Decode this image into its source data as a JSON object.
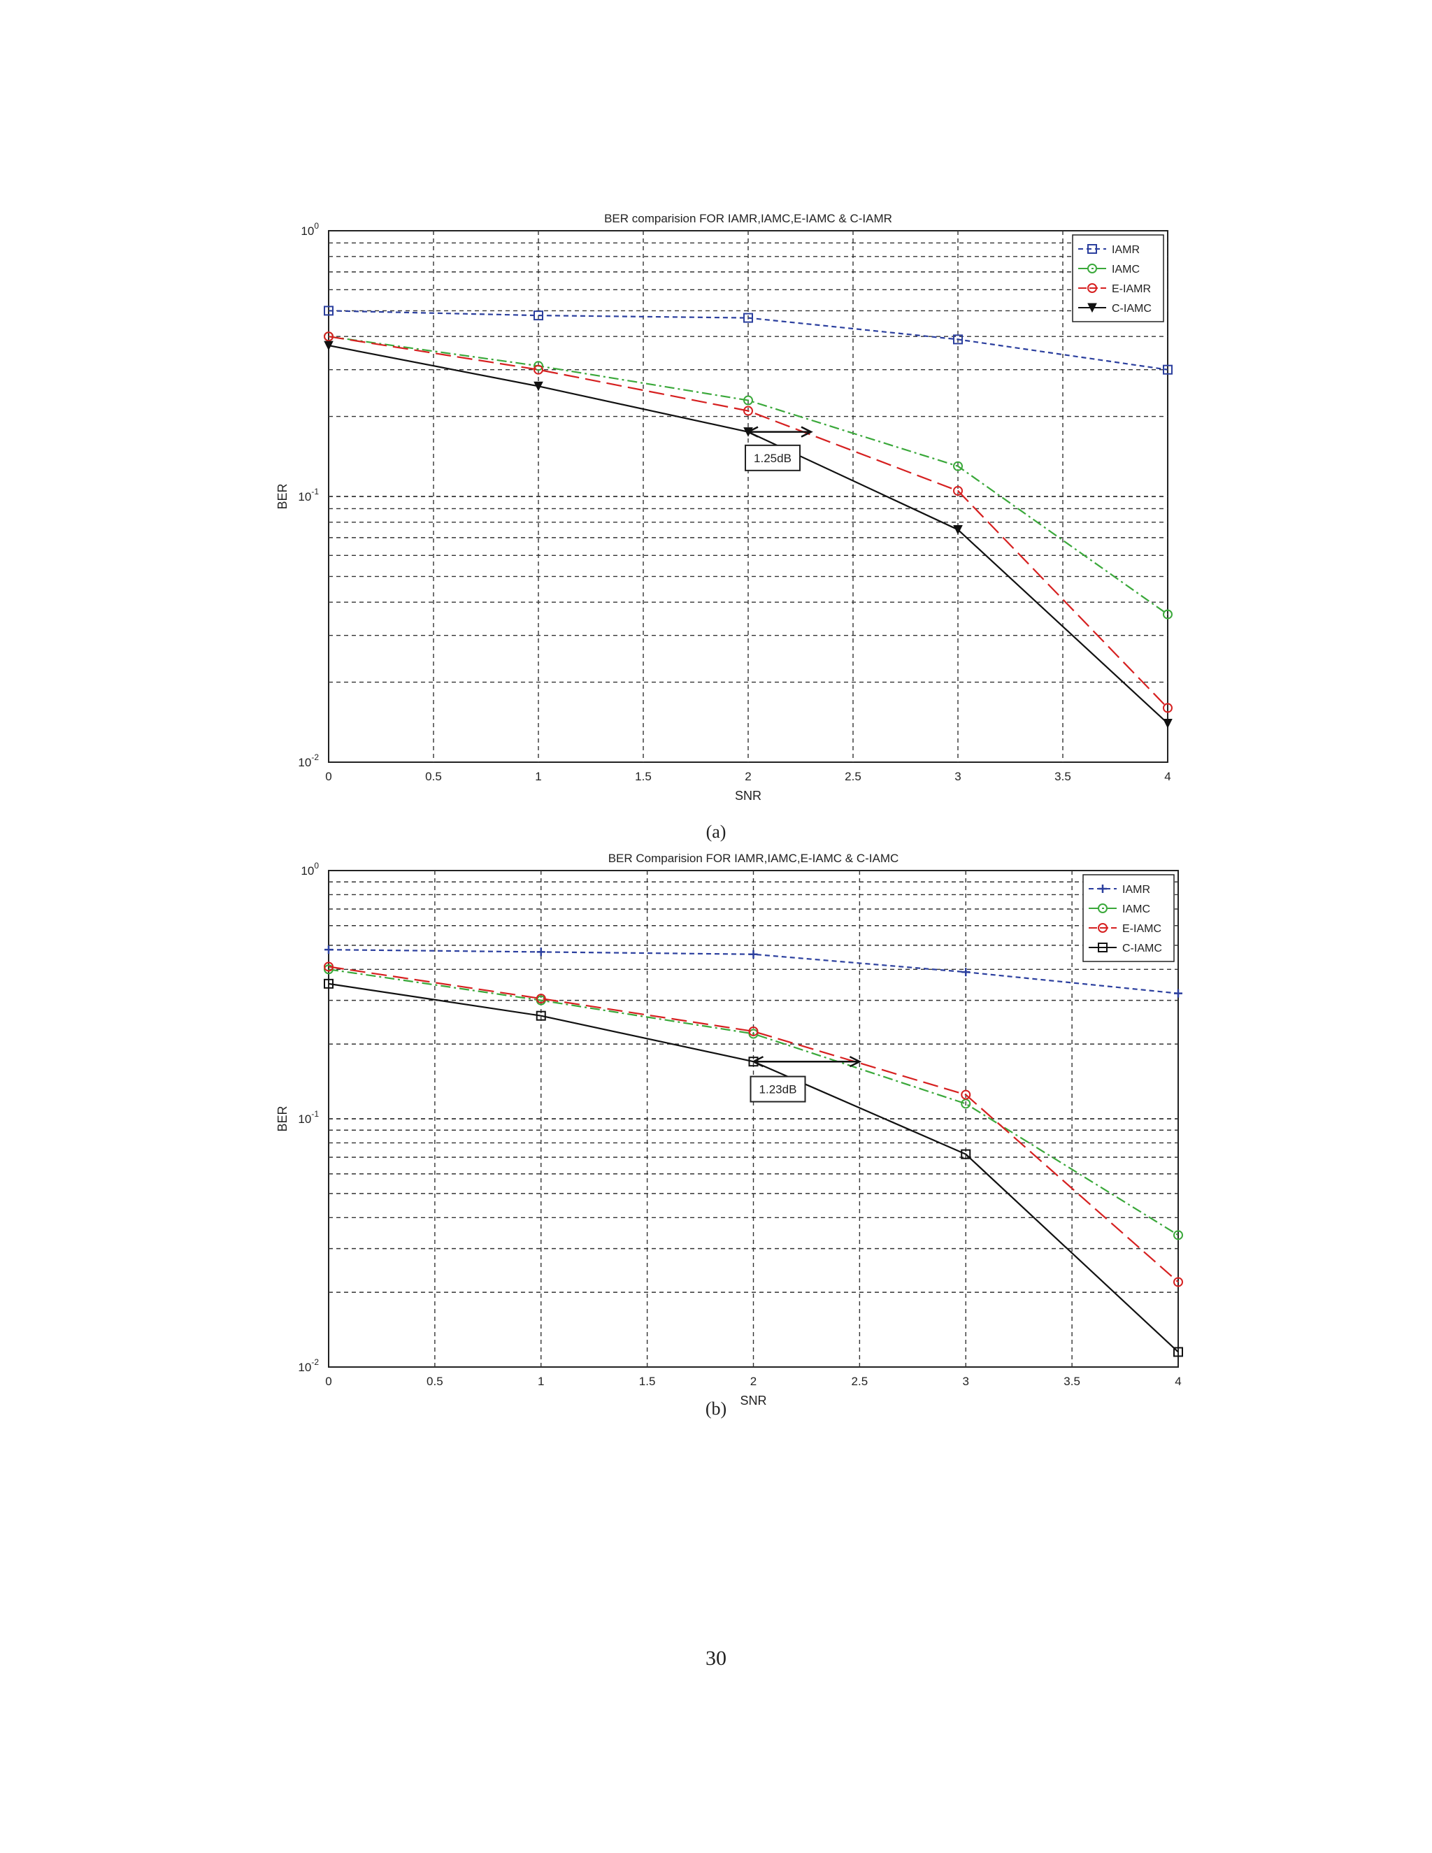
{
  "colors": {
    "IAMR": "#2b3f9e",
    "IAMC": "#3aa83a",
    "E-IAMR": "#d62020",
    "E-IAMC": "#d62020",
    "C-IAMC": "#111111",
    "C-IAMR": "#111111",
    "grid": "#333333"
  },
  "captions": {
    "a": "(a)",
    "b": "(b)"
  },
  "page_number": "30",
  "chart_data": [
    {
      "type": "line",
      "title": "BER comparision FOR IAMR,IAMC,E-IAMC & C-IAMR",
      "xlabel": "SNR",
      "ylabel": "BER",
      "yscale": "log",
      "xlim": [
        0,
        4
      ],
      "ylim": [
        0.01,
        1
      ],
      "grid": true,
      "legend_position": "top-right",
      "x": [
        0,
        1,
        2,
        3,
        4
      ],
      "x_ticks": [
        "0",
        "0.5",
        "1",
        "1.5",
        "2",
        "2.5",
        "3",
        "3.5",
        "4"
      ],
      "y_ticks": [
        {
          "base": "10",
          "exp": "0"
        },
        {
          "base": "10",
          "exp": "-1"
        },
        {
          "base": "10",
          "exp": "-2"
        }
      ],
      "series": [
        {
          "name": "IAMR",
          "color": "#2b3f9e",
          "dash": "dashed",
          "marker": "square",
          "values": [
            0.5,
            0.48,
            0.47,
            0.39,
            0.3
          ]
        },
        {
          "name": "IAMC",
          "color": "#3aa83a",
          "dash": "dashdot",
          "marker": "circle",
          "values": [
            0.4,
            0.31,
            0.23,
            0.13,
            0.036
          ]
        },
        {
          "name": "E-IAMR",
          "color": "#d62020",
          "dash": "longdash",
          "marker": "circle",
          "values": [
            0.4,
            0.3,
            0.21,
            0.105,
            0.016
          ]
        },
        {
          "name": "C-IAMC",
          "color": "#111111",
          "dash": "solid",
          "marker": "triangle",
          "values": [
            0.37,
            0.26,
            0.175,
            0.075,
            0.014
          ]
        }
      ],
      "annotation": {
        "text": "1.25dB",
        "x_from": 2.0,
        "x_to": 2.3,
        "y": 0.175,
        "box_y": 0.138
      }
    },
    {
      "type": "line",
      "title": "BER Comparision FOR IAMR,IAMC,E-IAMC & C-IAMC",
      "xlabel": "SNR",
      "ylabel": "BER",
      "yscale": "log",
      "xlim": [
        0,
        4
      ],
      "ylim": [
        0.01,
        1
      ],
      "grid": true,
      "legend_position": "top-right",
      "x": [
        0,
        1,
        2,
        3,
        4
      ],
      "x_ticks": [
        "0",
        "0.5",
        "1",
        "1.5",
        "2",
        "2.5",
        "3",
        "3.5",
        "4"
      ],
      "y_ticks": [
        {
          "base": "10",
          "exp": "0"
        },
        {
          "base": "10",
          "exp": "-1"
        },
        {
          "base": "10",
          "exp": "-2"
        }
      ],
      "series": [
        {
          "name": "IAMR",
          "color": "#2b3f9e",
          "dash": "dashed",
          "marker": "plus",
          "values": [
            0.48,
            0.47,
            0.46,
            0.39,
            0.32
          ]
        },
        {
          "name": "IAMC",
          "color": "#3aa83a",
          "dash": "dashdot",
          "marker": "circle",
          "values": [
            0.4,
            0.3,
            0.22,
            0.115,
            0.034
          ]
        },
        {
          "name": "E-IAMC",
          "color": "#d62020",
          "dash": "longdash",
          "marker": "circle",
          "values": [
            0.41,
            0.305,
            0.225,
            0.125,
            0.022
          ]
        },
        {
          "name": "C-IAMC",
          "color": "#111111",
          "dash": "solid",
          "marker": "square",
          "values": [
            0.35,
            0.26,
            0.17,
            0.072,
            0.0115
          ]
        }
      ],
      "annotation": {
        "text": "1.23dB",
        "x_from": 2.0,
        "x_to": 2.5,
        "y": 0.17,
        "box_y": 0.13
      }
    }
  ]
}
